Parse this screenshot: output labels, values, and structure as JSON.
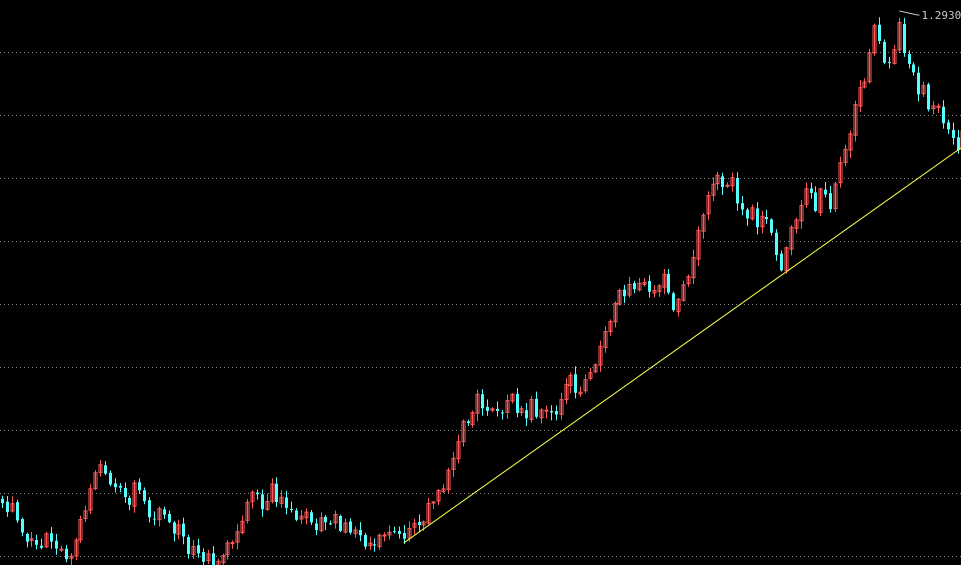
{
  "chart_data": {
    "type": "candlestick",
    "title": "",
    "xlabel": "",
    "ylabel": "",
    "ylim": [
      0.74,
      1.3
    ],
    "grid": true,
    "grid_y": [
      0.7485,
      0.8115,
      0.8745,
      0.9375,
      1.0005,
      1.0635,
      1.1265,
      1.1895,
      1.2525
    ],
    "colors": {
      "background": "#000000",
      "up": "#ff5a5a",
      "down": "#54ffff",
      "trendline": "#ffff50",
      "grid": "#8a8a8a"
    },
    "peak_label": {
      "text": "1.2930",
      "value": 1.293
    },
    "trendline": {
      "from": {
        "index": 82,
        "value": 0.762
      },
      "to": {
        "index": 191,
        "value": 1.14
      }
    },
    "closes": [
      0.8017,
      0.7928,
      0.8012,
      0.7844,
      0.7724,
      0.7633,
      0.7663,
      0.7601,
      0.7572,
      0.7711,
      0.7633,
      0.7564,
      0.7558,
      0.7458,
      0.7488,
      0.7648,
      0.7854,
      0.7941,
      0.816,
      0.8321,
      0.8401,
      0.8312,
      0.8204,
      0.8177,
      0.8172,
      0.8078,
      0.8001,
      0.8218,
      0.8146,
      0.8037,
      0.7877,
      0.7854,
      0.7962,
      0.7902,
      0.7827,
      0.7714,
      0.7801,
      0.7685,
      0.7509,
      0.7584,
      0.7516,
      0.7432,
      0.751,
      0.738,
      0.7437,
      0.7494,
      0.762,
      0.7624,
      0.7732,
      0.7836,
      0.8026,
      0.8127,
      0.8106,
      0.7957,
      0.8034,
      0.8209,
      0.8029,
      0.8076,
      0.797,
      0.7955,
      0.7851,
      0.7887,
      0.7928,
      0.7825,
      0.7749,
      0.787,
      0.7827,
      0.7815,
      0.7904,
      0.774,
      0.782,
      0.7724,
      0.7749,
      0.7697,
      0.7584,
      0.7619,
      0.7596,
      0.7697,
      0.7699,
      0.7727,
      0.7734,
      0.7711,
      0.7662,
      0.7765,
      0.7816,
      0.7798,
      0.7831,
      0.8015,
      0.8029,
      0.8144,
      0.816,
      0.8346,
      0.8465,
      0.8631,
      0.8834,
      0.8818,
      0.8921,
      0.9104,
      0.8965,
      0.8938,
      0.8959,
      0.8938,
      0.8915,
      0.9041,
      0.9103,
      0.8918,
      0.896,
      0.8865,
      0.9051,
      0.8879,
      0.8947,
      0.8945,
      0.8923,
      0.8902,
      0.9051,
      0.9203,
      0.9293,
      0.9119,
      0.9125,
      0.925,
      0.9321,
      0.9399,
      0.9582,
      0.973,
      0.9831,
      1.0011,
      1.014,
      1.0083,
      1.02,
      1.0154,
      1.0214,
      1.0221,
      1.0128,
      1.0141,
      1.0186,
      1.0301,
      1.012,
      0.9944,
      1.0053,
      1.0197,
      1.0279,
      1.0469,
      1.0741,
      1.0891,
      1.1087,
      1.1201,
      1.129,
      1.1172,
      1.1191,
      1.1267,
      1.1009,
      1.0948,
      1.0859,
      1.0966,
      1.0773,
      1.0881,
      1.0853,
      1.0717,
      1.0495,
      1.0341,
      1.0567,
      1.0771,
      1.0845,
      1.0989,
      1.1155,
      1.1114,
      1.0934,
      1.1154,
      1.1099,
      1.0953,
      1.1204,
      1.1415,
      1.1549,
      1.1704,
      1.1996,
      1.2165,
      1.2221,
      1.2512,
      1.2783,
      1.2631,
      1.2414,
      1.2412,
      1.2543,
      1.2815,
      1.2511,
      1.2402,
      1.2318,
      1.2099,
      1.2184,
      1.1948,
      1.1983,
      1.198,
      1.1809,
      1.1748,
      1.1663,
      1.1542,
      1.173,
      1.1524,
      1.1554
    ]
  }
}
